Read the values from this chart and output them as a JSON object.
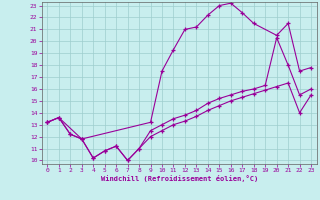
{
  "xlabel": "Windchill (Refroidissement éolien,°C)",
  "xlim": [
    -0.5,
    23.5
  ],
  "ylim": [
    9.7,
    23.3
  ],
  "xticks": [
    0,
    1,
    2,
    3,
    4,
    5,
    6,
    7,
    8,
    9,
    10,
    11,
    12,
    13,
    14,
    15,
    16,
    17,
    18,
    19,
    20,
    21,
    22,
    23
  ],
  "yticks": [
    10,
    11,
    12,
    13,
    14,
    15,
    16,
    17,
    18,
    19,
    20,
    21,
    22,
    23
  ],
  "background_color": "#c8eeee",
  "line_color": "#990099",
  "grid_color": "#9ecece",
  "top_x": [
    0,
    1,
    3,
    9,
    10,
    11,
    12,
    13,
    14,
    15,
    16,
    17,
    18,
    20,
    21,
    22,
    23
  ],
  "top_y": [
    13.2,
    13.6,
    11.8,
    13.2,
    17.5,
    19.3,
    21.0,
    21.2,
    22.2,
    23.0,
    23.2,
    22.4,
    21.5,
    20.5,
    21.5,
    17.5,
    17.8
  ],
  "mid_x": [
    0,
    1,
    2,
    3,
    4,
    5,
    6,
    7,
    8,
    9,
    10,
    11,
    12,
    13,
    14,
    15,
    16,
    17,
    18,
    19,
    20,
    21,
    22,
    23
  ],
  "mid_y": [
    13.2,
    13.6,
    12.2,
    11.8,
    10.2,
    10.8,
    11.2,
    10.0,
    11.0,
    12.5,
    13.0,
    13.5,
    13.8,
    14.2,
    14.8,
    15.2,
    15.5,
    15.8,
    16.0,
    16.3,
    20.3,
    18.0,
    15.5,
    16.0
  ],
  "bot_x": [
    0,
    1,
    2,
    3,
    4,
    5,
    6,
    7,
    8,
    9,
    10,
    11,
    12,
    13,
    14,
    15,
    16,
    17,
    18,
    19,
    20,
    21,
    22,
    23
  ],
  "bot_y": [
    13.2,
    13.6,
    12.2,
    11.8,
    10.2,
    10.8,
    11.2,
    10.0,
    11.0,
    12.0,
    12.5,
    13.0,
    13.3,
    13.7,
    14.2,
    14.6,
    15.0,
    15.3,
    15.6,
    15.9,
    16.2,
    16.5,
    14.0,
    15.5
  ]
}
